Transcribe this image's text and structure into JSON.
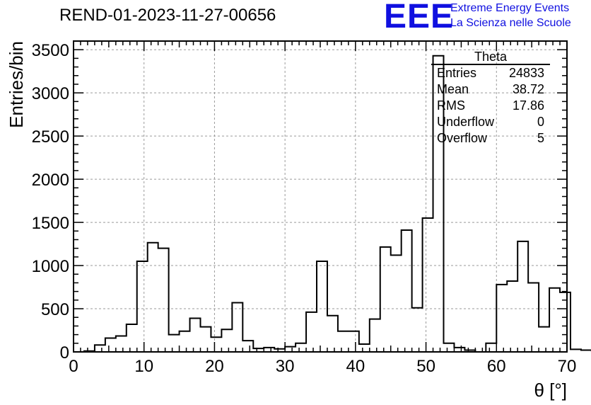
{
  "title": "REND-01-2023-11-27-00656",
  "logo": {
    "text": "EEE",
    "line1": "Extreme Energy Events",
    "line2": "La Scienza nelle Scuole",
    "color": "#1010e0"
  },
  "stats_box": {
    "title": "Theta",
    "rows": [
      {
        "label": "Entries",
        "value": "24833"
      },
      {
        "label": "Mean",
        "value": "38.72"
      },
      {
        "label": "RMS",
        "value": "17.86"
      },
      {
        "label": "Underflow",
        "value": "0"
      },
      {
        "label": "Overflow",
        "value": "5"
      }
    ]
  },
  "chart_data": {
    "type": "bar",
    "style": "step-histogram",
    "xlabel": "θ [°]",
    "ylabel": "Entries/bin",
    "xlim": [
      0,
      70
    ],
    "ylim": [
      0,
      3600
    ],
    "xticks": [
      0,
      10,
      20,
      30,
      40,
      50,
      60,
      70
    ],
    "yticks": [
      0,
      500,
      1000,
      1500,
      2000,
      2500,
      3000,
      3500
    ],
    "grid": true,
    "bin_width": 1.5,
    "bin_start": 1.5,
    "values": [
      10,
      80,
      160,
      185,
      320,
      1050,
      1265,
      1200,
      200,
      240,
      390,
      290,
      170,
      260,
      570,
      130,
      40,
      50,
      35,
      60,
      100,
      460,
      1050,
      420,
      240,
      240,
      90,
      380,
      1215,
      1120,
      1410,
      510,
      1550,
      3430,
      100,
      50,
      20,
      0,
      100,
      780,
      820,
      1280,
      800,
      290,
      740,
      690,
      30,
      20
    ],
    "line_color": "#000000"
  }
}
